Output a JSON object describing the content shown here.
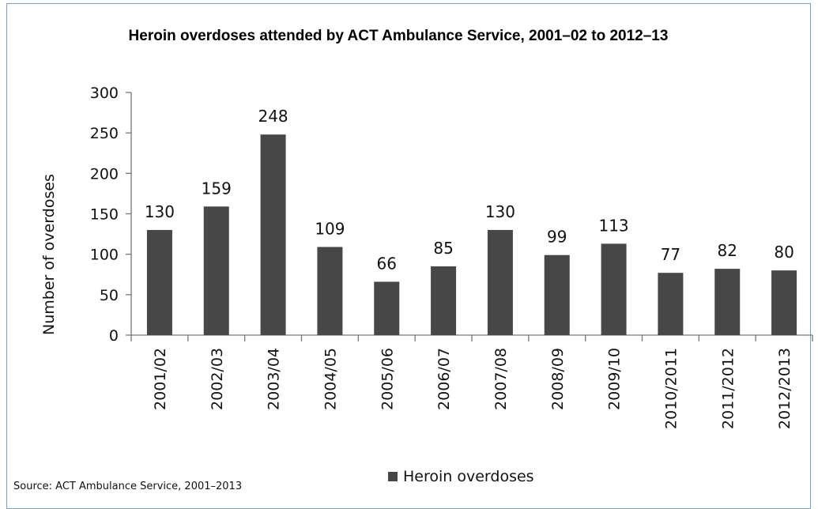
{
  "chart_data": {
    "type": "bar",
    "title": "Heroin overdoses attended by ACT Ambulance Service, 2001–02 to 2012–13",
    "xlabel": "",
    "ylabel": "Number of overdoses",
    "ylim": [
      0,
      300
    ],
    "yticks": [
      0,
      50,
      100,
      150,
      200,
      250,
      300
    ],
    "categories": [
      "2001/02",
      "2002/03",
      "2003/04",
      "2004/05",
      "2005/06",
      "2006/07",
      "2007/08",
      "2008/09",
      "2009/10",
      "2010/2011",
      "2011/2012",
      "2012/2013"
    ],
    "series": [
      {
        "name": "Heroin overdoses",
        "values": [
          130,
          159,
          248,
          109,
          66,
          85,
          130,
          99,
          113,
          77,
          82,
          80
        ],
        "color": "#474747"
      }
    ],
    "data_labels": true,
    "grid": false,
    "legend": "bottom-center",
    "source": "Source: ACT Ambulance Service, 2001–2013"
  }
}
